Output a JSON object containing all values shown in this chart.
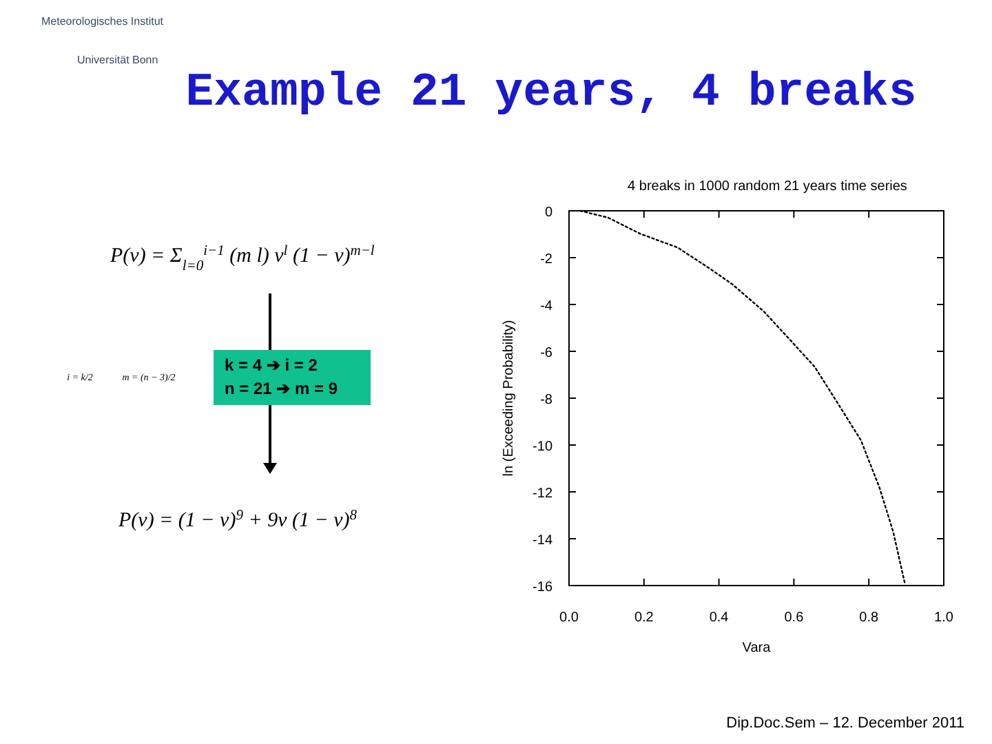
{
  "chart_data": {
    "type": "line",
    "title": "Example 21 years, 4 breaks",
    "subtitle": "4 breaks in 1000 random  21 years  time series",
    "xlabel": "Vara",
    "ylabel": "ln (Exceeding Probability)",
    "x": [
      0.03,
      0.104,
      0.19,
      0.29,
      0.374,
      0.436,
      0.52,
      0.595,
      0.656,
      0.718,
      0.779,
      0.828,
      0.865,
      0.896
    ],
    "series": [
      {
        "color": "#000000",
        "values": [
          0,
          -0.29,
          -0.98,
          -1.57,
          -2.45,
          -3.14,
          -4.3,
          -5.6,
          -6.67,
          -8.24,
          -9.8,
          -11.8,
          -13.7,
          -15.9
        ]
      }
    ],
    "xlim": [
      0,
      1
    ],
    "xticks": [
      {
        "value": 0,
        "label": "0.0"
      },
      {
        "value": 0.2,
        "label": "0.2"
      },
      {
        "value": 0.4,
        "label": "0.4"
      },
      {
        "value": 0.6,
        "label": "0.6"
      },
      {
        "value": 0.8,
        "label": "0.8"
      },
      {
        "value": 1,
        "label": "1.0"
      }
    ],
    "ylim": [
      -16,
      0
    ],
    "yticks": [
      0,
      -2,
      -4,
      -6,
      -8,
      -10,
      -12,
      -14,
      -16
    ],
    "line_style": "dotted",
    "marker": "none",
    "annotations": [
      "Meteorologisches Institut",
      "Universität Bonn",
      "P(v) = Σ$_{l=0}$$^{i−1}$ (m l) v$^{l}$ (1 − v)$^{m−l}$",
      "i = k/2",
      "m = (n − 3)/2",
      "k = 4 ➔ i = 2",
      "n = 21 ➔ m = 9",
      "P(v) = (1 − v)$^{9}$ + 9v (1 − v)$^{8}$",
      "Dip.Doc.Sem – 12. December 2011"
    ]
  }
}
